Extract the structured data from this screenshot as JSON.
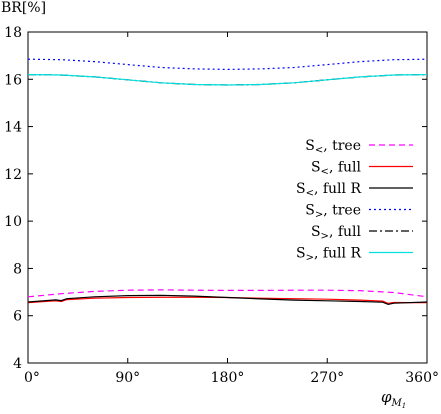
{
  "chart_data": {
    "type": "line",
    "ylabel": "BR[%]",
    "xlabel_main": "φ",
    "xlabel_sub": "M",
    "xlabel_subsub": "1",
    "xlim": [
      0,
      360
    ],
    "ylim": [
      4,
      18
    ],
    "xticks": [
      {
        "value": 0,
        "label": "0°"
      },
      {
        "value": 90,
        "label": "90°"
      },
      {
        "value": 180,
        "label": "180°"
      },
      {
        "value": 270,
        "label": "270°"
      },
      {
        "value": 360,
        "label": "360°"
      }
    ],
    "yticks": [
      {
        "value": 4,
        "label": "4"
      },
      {
        "value": 6,
        "label": "6"
      },
      {
        "value": 8,
        "label": "8"
      },
      {
        "value": 10,
        "label": "10"
      },
      {
        "value": 12,
        "label": "12"
      },
      {
        "value": 14,
        "label": "14"
      },
      {
        "value": 16,
        "label": "16"
      },
      {
        "value": 18,
        "label": "18"
      }
    ],
    "grid": false,
    "legend_position": "right",
    "series": [
      {
        "name": "S<, tree",
        "label_main": "S",
        "label_sub": "<",
        "label_rest": ", tree",
        "color": "#ff00ff",
        "dash": "6,4",
        "x": [
          0,
          30,
          60,
          90,
          120,
          150,
          180,
          210,
          240,
          270,
          300,
          330,
          360
        ],
        "values": [
          6.8,
          6.93,
          7.03,
          7.08,
          7.09,
          7.08,
          7.07,
          7.07,
          7.08,
          7.08,
          7.06,
          6.98,
          6.8
        ]
      },
      {
        "name": "S<, full",
        "label_main": "S",
        "label_sub": "<",
        "label_rest": ", full",
        "color": "#ff0000",
        "dash": "",
        "x": [
          0,
          25,
          30,
          35,
          60,
          90,
          120,
          150,
          180,
          210,
          240,
          270,
          300,
          320,
          325,
          330,
          360
        ],
        "values": [
          6.55,
          6.63,
          6.6,
          6.68,
          6.74,
          6.77,
          6.78,
          6.78,
          6.77,
          6.74,
          6.72,
          6.7,
          6.66,
          6.62,
          6.52,
          6.56,
          6.55
        ]
      },
      {
        "name": "S<, full R",
        "label_main": "S",
        "label_sub": "<",
        "label_rest": ", full R",
        "color": "#000000",
        "dash": "",
        "x": [
          0,
          25,
          30,
          35,
          60,
          90,
          120,
          150,
          180,
          210,
          240,
          270,
          300,
          320,
          325,
          330,
          360
        ],
        "values": [
          6.58,
          6.67,
          6.64,
          6.72,
          6.8,
          6.85,
          6.86,
          6.83,
          6.77,
          6.71,
          6.66,
          6.63,
          6.6,
          6.57,
          6.48,
          6.53,
          6.58
        ]
      },
      {
        "name": "S>, tree",
        "label_main": "S",
        "label_sub": ">",
        "label_rest": ", tree",
        "color": "#0000ff",
        "dash": "2,3",
        "x": [
          0,
          30,
          60,
          90,
          120,
          150,
          180,
          210,
          240,
          270,
          300,
          330,
          360
        ],
        "values": [
          16.85,
          16.83,
          16.75,
          16.62,
          16.5,
          16.44,
          16.42,
          16.44,
          16.5,
          16.62,
          16.75,
          16.83,
          16.85
        ]
      },
      {
        "name": "S>, full",
        "label_main": "S",
        "label_sub": ">",
        "label_rest": ", full",
        "color": "#000000",
        "dash": "8,3,2,3",
        "x": [
          0,
          30,
          60,
          90,
          120,
          150,
          180,
          210,
          240,
          270,
          300,
          330,
          360
        ],
        "values": [
          16.2,
          16.18,
          16.1,
          15.98,
          15.85,
          15.78,
          15.76,
          15.78,
          15.85,
          15.98,
          16.1,
          16.18,
          16.2
        ]
      },
      {
        "name": "S>, full R",
        "label_main": "S",
        "label_sub": ">",
        "label_rest": ", full R",
        "color": "#00e0e0",
        "dash": "",
        "x": [
          0,
          30,
          60,
          90,
          120,
          150,
          180,
          210,
          240,
          270,
          300,
          330,
          360
        ],
        "values": [
          16.2,
          16.18,
          16.1,
          15.98,
          15.85,
          15.78,
          15.76,
          15.78,
          15.85,
          15.98,
          16.1,
          16.18,
          16.2
        ]
      }
    ]
  }
}
